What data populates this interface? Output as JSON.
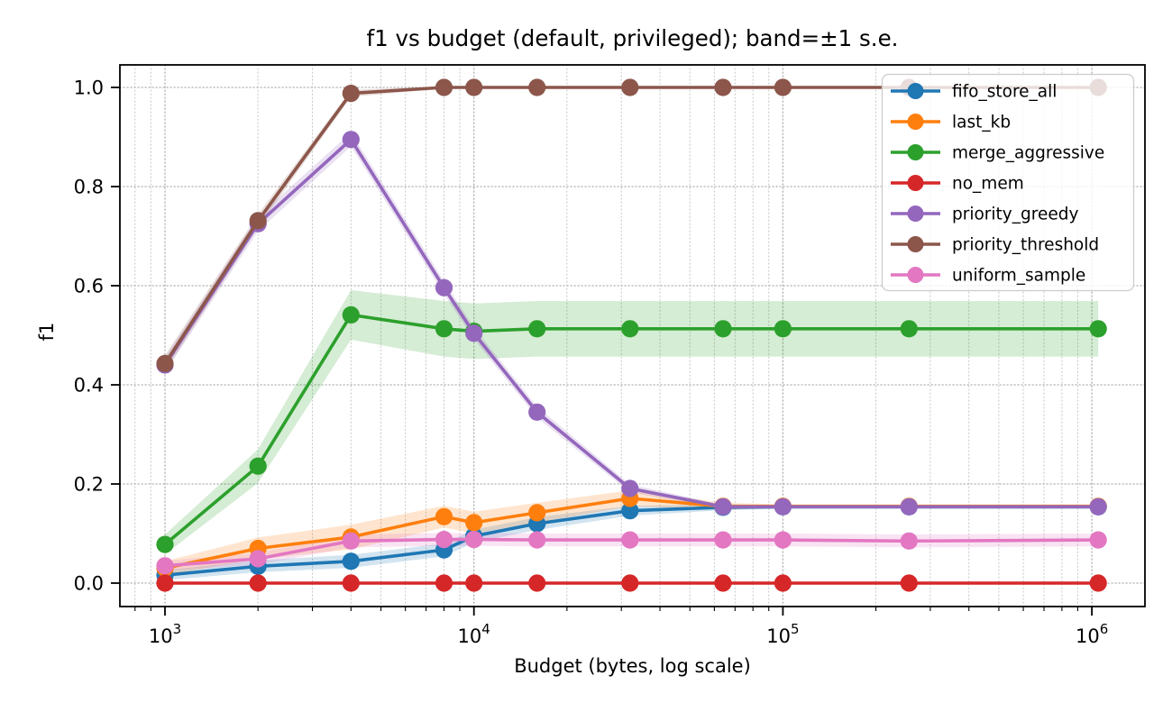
{
  "chart_data": {
    "type": "line",
    "title": "f1 vs budget (default, privileged); band=±ated1 s.e.",
    "title_fixed": "f1 vs budget (default, privileged); band=±1 s.e.",
    "xlabel": "Budget (bytes, log scale)",
    "ylabel": "f1",
    "x_scale": "log",
    "grid": "dotted major+minor",
    "legend_position": "upper right",
    "band_alpha": 0.2,
    "xlim_log10": [
      2.854,
      6.172
    ],
    "ylim": [
      -0.047,
      1.045
    ],
    "x": [
      1000,
      2000,
      4000,
      8000,
      10000,
      16000,
      32000,
      64000,
      100000,
      256000,
      1048576
    ],
    "x_ticks": [
      {
        "value": 1000,
        "base": "10",
        "exp": "3"
      },
      {
        "value": 10000,
        "base": "10",
        "exp": "4"
      },
      {
        "value": 100000,
        "base": "10",
        "exp": "5"
      },
      {
        "value": 1000000,
        "base": "10",
        "exp": "6"
      }
    ],
    "y_ticks": [
      {
        "value": 0.0,
        "label": "0.0"
      },
      {
        "value": 0.2,
        "label": "0.2"
      },
      {
        "value": 0.4,
        "label": "0.4"
      },
      {
        "value": 0.6,
        "label": "0.6"
      },
      {
        "value": 0.8,
        "label": "0.8"
      },
      {
        "value": 1.0,
        "label": "1.0"
      }
    ],
    "series": [
      {
        "name": "fifo_store_all",
        "color": "#1f77b4",
        "values": [
          0.016,
          0.034,
          0.044,
          0.067,
          0.095,
          0.12,
          0.146,
          0.153,
          0.154,
          0.154,
          0.154
        ],
        "se": [
          0.01,
          0.012,
          0.013,
          0.013,
          0.013,
          0.013,
          0.01,
          0.006,
          0.004,
          0.004,
          0.004
        ]
      },
      {
        "name": "last_kb",
        "color": "#ff7f0e",
        "values": [
          0.03,
          0.07,
          0.093,
          0.134,
          0.122,
          0.142,
          0.171,
          0.155,
          0.155,
          0.155,
          0.155
        ],
        "se": [
          0.014,
          0.022,
          0.025,
          0.022,
          0.022,
          0.02,
          0.016,
          0.007,
          0.004,
          0.004,
          0.004
        ]
      },
      {
        "name": "merge_aggressive",
        "color": "#2ca02c",
        "values": [
          0.078,
          0.236,
          0.541,
          0.513,
          0.508,
          0.513,
          0.513,
          0.513,
          0.513,
          0.513,
          0.513
        ],
        "se": [
          0.02,
          0.034,
          0.05,
          0.056,
          0.056,
          0.056,
          0.056,
          0.056,
          0.056,
          0.056,
          0.056
        ]
      },
      {
        "name": "no_mem",
        "color": "#d62728",
        "values": [
          0.0,
          0.0,
          0.0,
          0.0,
          0.0,
          0.0,
          0.0,
          0.0,
          0.0,
          0.0,
          0.0
        ],
        "se": [
          0.0,
          0.0,
          0.0,
          0.0,
          0.0,
          0.0,
          0.0,
          0.0,
          0.0,
          0.0,
          0.0
        ]
      },
      {
        "name": "priority_greedy",
        "color": "#9467bd",
        "values": [
          0.44,
          0.725,
          0.895,
          0.596,
          0.504,
          0.345,
          0.191,
          0.154,
          0.154,
          0.154,
          0.154
        ],
        "se": [
          0.015,
          0.015,
          0.014,
          0.013,
          0.012,
          0.011,
          0.008,
          0.004,
          0.003,
          0.003,
          0.003
        ]
      },
      {
        "name": "priority_threshold",
        "color": "#8c564b",
        "values": [
          0.443,
          0.731,
          0.988,
          1.0,
          1.0,
          1.0,
          1.0,
          1.0,
          1.0,
          1.0,
          1.0
        ],
        "se": [
          0.016,
          0.013,
          0.007,
          0.002,
          0.001,
          0.001,
          0.001,
          0.001,
          0.001,
          0.001,
          0.001
        ]
      },
      {
        "name": "uniform_sample",
        "color": "#e377c2",
        "values": [
          0.035,
          0.049,
          0.085,
          0.088,
          0.088,
          0.087,
          0.087,
          0.087,
          0.087,
          0.085,
          0.087
        ],
        "se": [
          0.01,
          0.012,
          0.013,
          0.013,
          0.013,
          0.013,
          0.013,
          0.013,
          0.013,
          0.013,
          0.013
        ]
      }
    ]
  }
}
